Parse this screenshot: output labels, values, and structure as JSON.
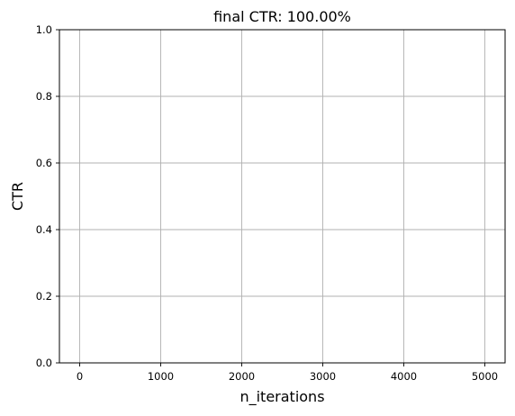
{
  "chart_data": {
    "type": "line",
    "title": "final CTR: 100.00%",
    "xlabel": "n_iterations",
    "ylabel": "CTR",
    "xlim": [
      -250,
      5250
    ],
    "ylim": [
      0.0,
      1.0
    ],
    "xticks": [
      "0",
      "1000",
      "2000",
      "3000",
      "4000",
      "5000"
    ],
    "xtick_values": [
      0,
      1000,
      2000,
      3000,
      4000,
      5000
    ],
    "yticks": [
      "0.0",
      "0.2",
      "0.4",
      "0.6",
      "0.8",
      "1.0"
    ],
    "ytick_values": [
      0.0,
      0.2,
      0.4,
      0.6,
      0.8,
      1.0
    ],
    "grid": true,
    "series": []
  },
  "colors": {
    "grid": "#b0b0b0",
    "axes": "#000000",
    "background": "#ffffff"
  }
}
